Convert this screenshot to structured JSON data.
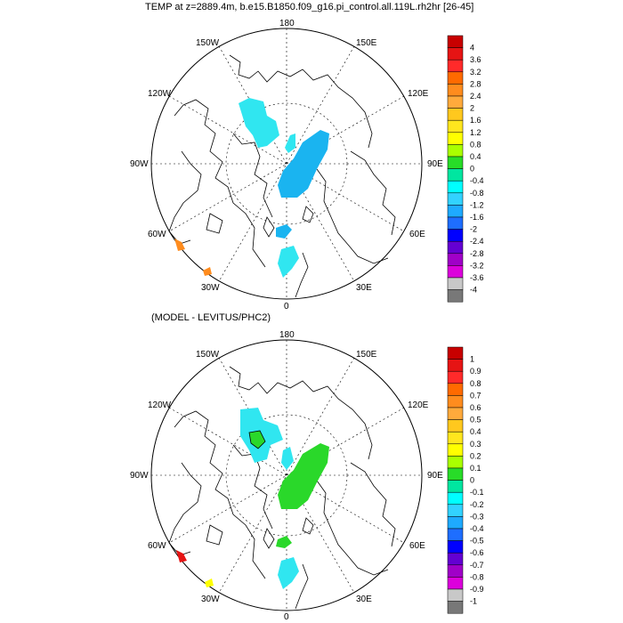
{
  "title_top": "TEMP at z=2889.4m, b.e15.B1850.f09_g16.pi_control.all.119L.rh2hr [26-45]",
  "title_bottom": "(MODEL - LEVITUS/PHC2)",
  "lon_labels": {
    "n180": "180",
    "w150": "150W",
    "e150": "150E",
    "w120": "120W",
    "e120": "120E",
    "w90": "90W",
    "e90": "90E",
    "w60": "60W",
    "e60": "60E",
    "w30": "30W",
    "e30": "30E",
    "s0": "0"
  },
  "colorbar_top": {
    "labels": [
      "4",
      "3.6",
      "3.2",
      "2.8",
      "2.4",
      "2",
      "1.6",
      "1.2",
      "0.8",
      "0.4",
      "0",
      "-0.4",
      "-0.8",
      "-1.2",
      "-1.6",
      "-2",
      "-2.4",
      "-2.8",
      "-3.2",
      "-3.6",
      "-4"
    ],
    "colors": [
      "#c80000",
      "#e61414",
      "#ff2a2a",
      "#ff6a00",
      "#ff8c1e",
      "#ffaa3c",
      "#ffc81e",
      "#ffe61e",
      "#ffff00",
      "#aaff00",
      "#28dc28",
      "#00e6a0",
      "#00ffff",
      "#32d2ff",
      "#1eaaff",
      "#1e6eff",
      "#0000ff",
      "#6400d2",
      "#a000c8",
      "#dc00dc",
      "#c8c8c8",
      "#787878"
    ]
  },
  "colorbar_bottom": {
    "labels": [
      "1",
      "0.9",
      "0.8",
      "0.7",
      "0.6",
      "0.5",
      "0.4",
      "0.3",
      "0.2",
      "0.1",
      "0",
      "-0.1",
      "-0.2",
      "-0.3",
      "-0.4",
      "-0.5",
      "-0.6",
      "-0.7",
      "-0.8",
      "-0.9",
      "-1"
    ],
    "colors": [
      "#c80000",
      "#e61414",
      "#ff2a2a",
      "#ff6a00",
      "#ff8c1e",
      "#ffaa3c",
      "#ffc81e",
      "#ffe61e",
      "#ffff00",
      "#aaff00",
      "#28dc28",
      "#00e6a0",
      "#00ffff",
      "#32d2ff",
      "#1eaaff",
      "#1e6eff",
      "#0000ff",
      "#6400d2",
      "#a000c8",
      "#dc00dc",
      "#c8c8c8",
      "#787878"
    ]
  },
  "field_colors": {
    "cyan": "#30e6f0",
    "blue": "#1ab4f0",
    "green": "#2ad82a",
    "orange": "#ff8c1e",
    "red": "#e61414",
    "yellow": "#ffff00"
  }
}
